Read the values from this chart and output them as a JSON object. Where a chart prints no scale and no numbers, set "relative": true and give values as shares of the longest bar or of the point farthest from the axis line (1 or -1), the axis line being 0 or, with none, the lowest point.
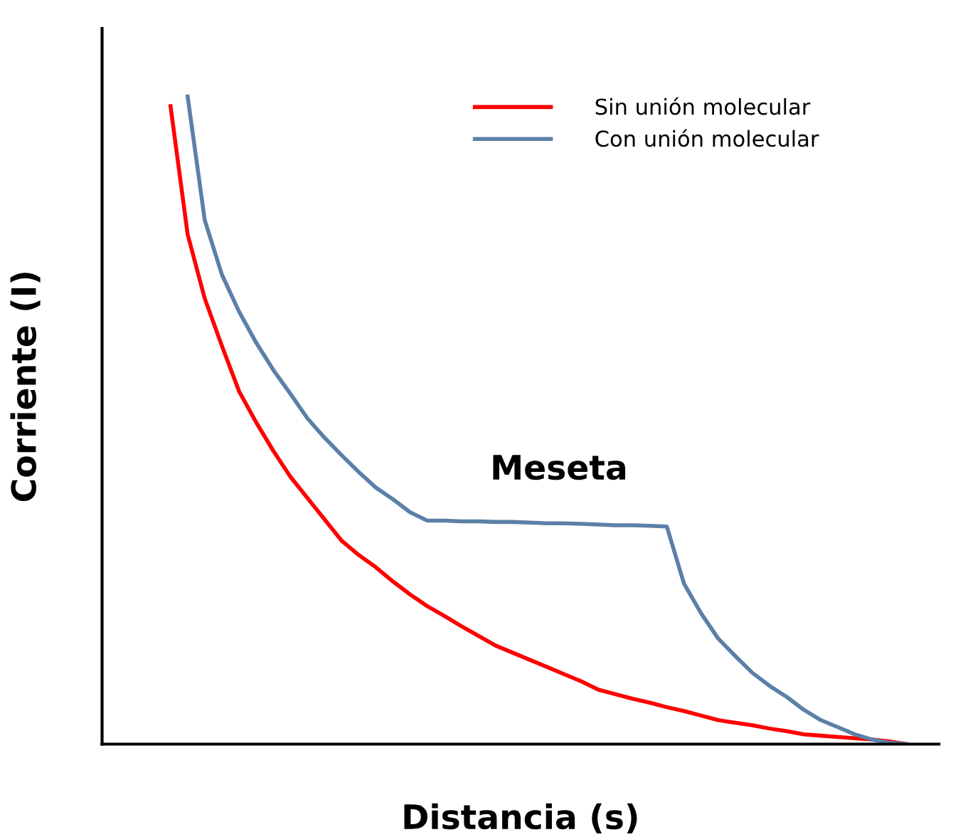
{
  "chart_data": {
    "type": "line",
    "relative": true,
    "xlabel": "Distancia (s)",
    "ylabel": "Corriente (I)",
    "legend": "top right",
    "tick_labels": false,
    "categories": [
      null,
      null,
      null,
      null,
      null,
      null,
      null,
      null,
      null,
      null,
      null,
      null,
      null,
      null,
      null,
      null,
      null,
      null,
      null,
      null,
      null,
      null,
      null,
      null,
      null,
      null,
      null,
      null,
      null,
      null,
      null,
      null,
      null,
      null,
      null,
      null,
      null,
      null,
      null,
      null,
      null,
      null,
      null,
      null,
      null,
      null,
      null,
      null,
      null
    ],
    "series": [
      {
        "name": "Sin unión molecular",
        "color": "#ff0000",
        "values": [
          null,
          null,
          null,
          null,
          0.985,
          0.787,
          0.688,
          0.615,
          0.545,
          0.497,
          0.453,
          0.413,
          0.38,
          0.347,
          0.314,
          0.292,
          0.273,
          0.251,
          0.231,
          0.213,
          0.198,
          0.182,
          0.167,
          0.152,
          0.141,
          0.13,
          0.119,
          0.108,
          0.097,
          0.084,
          0.077,
          0.07,
          0.064,
          0.057,
          0.051,
          0.044,
          0.037,
          0.033,
          0.029,
          0.024,
          0.02,
          0.015,
          0.013,
          0.011,
          0.009,
          0.007,
          0.004,
          0,
          null
        ]
      },
      {
        "name": "Con unión molecular",
        "color": "#5b80a8",
        "values": [
          null,
          null,
          null,
          null,
          null,
          1,
          0.809,
          0.725,
          0.668,
          0.62,
          0.578,
          0.541,
          0.503,
          0.473,
          0.446,
          0.42,
          0.396,
          0.378,
          0.358,
          0.345,
          0.345,
          0.344,
          0.344,
          0.343,
          0.343,
          0.342,
          0.341,
          0.341,
          0.34,
          0.339,
          0.338,
          0.338,
          0.337,
          0.336,
          0.248,
          0.202,
          0.163,
          0.136,
          0.11,
          0.09,
          0.073,
          0.053,
          0.037,
          0.026,
          0.015,
          0.007,
          0.002,
          0,
          null
        ]
      }
    ],
    "annotations": [
      "Meseta"
    ]
  }
}
